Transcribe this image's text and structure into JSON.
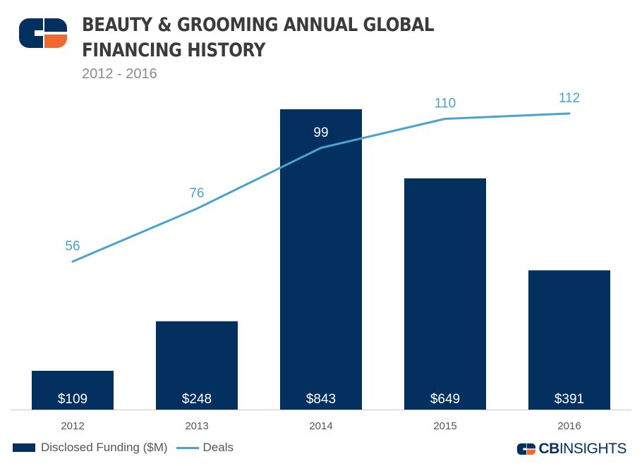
{
  "header": {
    "title": "BEAUTY & GROOMING ANNUAL GLOBAL FINANCING HISTORY",
    "subtitle": "2012 - 2016"
  },
  "brand": {
    "bold": "CB",
    "light": "INSIGHTS"
  },
  "colors": {
    "bar": "#04305f",
    "line": "#4aa3cf",
    "orange": "#ef6a2f",
    "axis": "#cccccc"
  },
  "chart_data": {
    "type": "bar",
    "categories": [
      "2012",
      "2013",
      "2014",
      "2015",
      "2016"
    ],
    "series": [
      {
        "name": "Disclosed Funding ($M)",
        "type": "bar",
        "values": [
          109,
          248,
          843,
          649,
          391
        ],
        "labels": [
          "$109",
          "$248",
          "$843",
          "$649",
          "$391"
        ]
      },
      {
        "name": "Deals",
        "type": "line",
        "values": [
          56,
          76,
          99,
          110,
          112
        ],
        "labels": [
          "56",
          "76",
          "99",
          "110",
          "112"
        ]
      }
    ],
    "title": "BEAUTY & GROOMING ANNUAL GLOBAL FINANCING HISTORY",
    "subtitle": "2012 - 2016",
    "ylim_bar": [
      0,
      850
    ],
    "ylim_line": [
      0,
      160
    ],
    "grid": false,
    "legend": "bottom-left"
  }
}
